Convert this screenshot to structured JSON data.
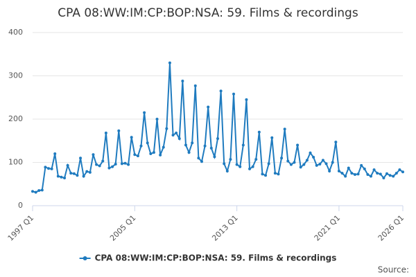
{
  "chart_data": {
    "type": "line",
    "title": "CPA 08:WW:IM:CP:BOP:NSA: 59. Films & recordings",
    "source": "Source:",
    "categories": [
      "1997 Q1",
      null,
      null,
      null,
      null,
      null,
      null,
      null,
      null,
      null,
      null,
      null,
      null,
      null,
      null,
      null,
      null,
      null,
      null,
      null,
      null,
      null,
      null,
      null,
      null,
      null,
      null,
      null,
      null,
      null,
      null,
      null,
      "2005 Q1",
      null,
      null,
      null,
      null,
      null,
      null,
      null,
      null,
      null,
      null,
      null,
      null,
      null,
      null,
      null,
      null,
      null,
      null,
      null,
      null,
      null,
      null,
      null,
      null,
      null,
      null,
      null,
      null,
      null,
      null,
      null,
      "2013 Q1",
      null,
      null,
      null,
      null,
      null,
      null,
      null,
      null,
      null,
      null,
      null,
      null,
      null,
      null,
      null,
      null,
      null,
      null,
      null,
      null,
      null,
      null,
      null,
      null,
      null,
      null,
      null,
      null,
      null,
      null,
      null,
      "2021 Q1",
      null,
      null,
      null,
      null,
      null,
      null,
      null,
      null,
      null,
      null,
      null,
      null,
      null,
      null,
      null,
      null,
      null,
      null,
      null,
      "2026 Q1"
    ],
    "series": [
      {
        "name": "CPA 08:WW:IM:CP:BOP:NSA: 59. Films & recordings",
        "color": "#1f7bbf",
        "values": [
          33,
          31,
          35,
          36,
          89,
          86,
          85,
          120,
          68,
          66,
          64,
          93,
          75,
          74,
          70,
          110,
          68,
          79,
          77,
          118,
          95,
          92,
          103,
          168,
          87,
          90,
          96,
          173,
          97,
          98,
          95,
          158,
          118,
          115,
          138,
          215,
          145,
          120,
          123,
          200,
          117,
          135,
          178,
          330,
          163,
          168,
          155,
          288,
          140,
          123,
          145,
          277,
          110,
          102,
          138,
          228,
          133,
          113,
          155,
          265,
          97,
          80,
          107,
          258,
          95,
          90,
          140,
          245,
          85,
          90,
          107,
          170,
          73,
          70,
          97,
          157,
          75,
          73,
          110,
          177,
          103,
          95,
          100,
          140,
          89,
          95,
          105,
          122,
          112,
          93,
          96,
          105,
          97,
          80,
          100,
          147,
          80,
          75,
          68,
          87,
          75,
          72,
          73,
          93,
          85,
          72,
          68,
          83,
          75,
          73,
          64,
          74,
          70,
          68,
          75,
          83,
          78
        ]
      }
    ],
    "ylim": [
      0,
      400
    ],
    "yticks": [
      0,
      100,
      200,
      300,
      400
    ],
    "grid": true
  }
}
